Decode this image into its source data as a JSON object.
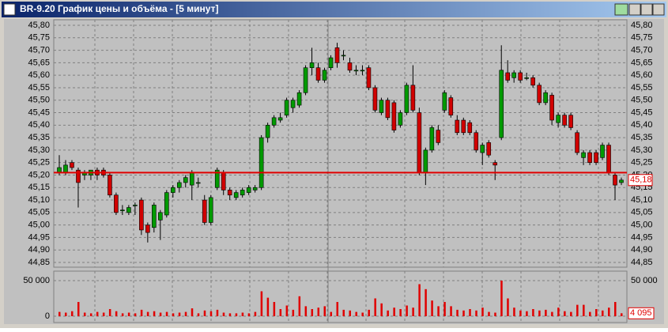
{
  "chart_data": {
    "type": "candlestick",
    "title": "BR-9.20 График цены и объёма - [5 минут]",
    "up_color": "#009a00",
    "down_color": "#d00000",
    "volume_color": "#e00000",
    "level_color": "#e00000",
    "grid": true,
    "open": [
      45.21,
      45.21,
      45.25,
      45.22,
      45.2,
      45.2,
      45.22,
      45.22,
      45.2,
      45.12,
      45.06,
      45.05,
      45.08,
      45.1,
      45.0,
      44.99,
      45.02,
      45.04,
      45.13,
      45.15,
      45.17,
      45.16,
      45.17,
      45.1,
      45.01,
      45.15,
      45.21,
      45.14,
      45.11,
      45.12,
      45.13,
      45.14,
      45.15,
      45.35,
      45.4,
      45.42,
      45.44,
      45.47,
      45.48,
      45.53,
      45.63,
      45.63,
      45.58,
      45.63,
      45.71,
      45.68,
      45.65,
      45.62,
      45.62,
      45.63,
      45.55,
      45.45,
      45.5,
      45.49,
      45.4,
      45.45,
      45.56,
      45.45,
      45.21,
      45.3,
      45.38,
      45.46,
      45.51,
      45.42,
      45.42,
      45.41,
      45.37,
      45.29,
      45.33,
      45.25,
      45.35,
      45.61,
      45.59,
      45.61,
      45.59,
      45.59,
      45.56,
      45.49,
      45.52,
      45.41,
      45.44,
      45.44,
      45.37,
      45.27,
      45.29,
      45.29,
      45.27,
      45.32,
      45.2,
      45.17
    ],
    "high": [
      45.28,
      45.26,
      45.26,
      45.23,
      45.22,
      45.22,
      45.23,
      45.23,
      45.21,
      45.13,
      45.08,
      45.08,
      45.09,
      45.11,
      45.01,
      45.09,
      45.06,
      45.14,
      45.16,
      45.18,
      45.2,
      45.22,
      45.19,
      45.12,
      45.12,
      45.23,
      45.22,
      45.15,
      45.14,
      45.15,
      45.16,
      45.16,
      45.36,
      45.41,
      45.44,
      45.45,
      45.51,
      45.51,
      45.54,
      45.64,
      45.71,
      45.65,
      45.63,
      45.68,
      45.73,
      45.7,
      45.67,
      45.64,
      45.64,
      45.64,
      45.56,
      45.51,
      45.51,
      45.5,
      45.46,
      45.57,
      45.64,
      45.47,
      45.31,
      45.4,
      45.4,
      45.54,
      45.52,
      45.44,
      45.43,
      45.42,
      45.38,
      45.33,
      45.34,
      45.26,
      45.72,
      45.66,
      45.62,
      45.62,
      45.61,
      45.6,
      45.57,
      45.54,
      45.53,
      45.45,
      45.45,
      45.45,
      45.38,
      45.3,
      45.3,
      45.3,
      45.33,
      45.33,
      45.21,
      45.19
    ],
    "low": [
      45.2,
      45.2,
      45.22,
      45.07,
      45.18,
      45.18,
      45.18,
      45.19,
      45.11,
      45.04,
      45.04,
      45.04,
      45.04,
      44.96,
      44.93,
      44.97,
      44.94,
      45.03,
      45.11,
      45.13,
      45.15,
      45.1,
      45.15,
      45.0,
      45.0,
      45.14,
      45.12,
      45.1,
      45.1,
      45.11,
      45.12,
      45.13,
      45.14,
      45.33,
      45.39,
      45.41,
      45.43,
      45.45,
      45.47,
      45.52,
      45.6,
      45.57,
      45.57,
      45.62,
      45.63,
      45.66,
      45.61,
      45.6,
      45.6,
      45.54,
      45.45,
      45.44,
      45.42,
      45.37,
      45.39,
      45.44,
      45.45,
      45.2,
      45.16,
      45.29,
      45.32,
      45.45,
      45.43,
      45.36,
      45.36,
      45.36,
      45.29,
      45.24,
      45.27,
      45.18,
      45.34,
      45.57,
      45.57,
      45.57,
      45.58,
      45.55,
      45.48,
      45.48,
      45.4,
      45.39,
      45.39,
      45.38,
      45.28,
      45.24,
      45.24,
      45.24,
      45.26,
      45.2,
      45.1,
      45.16
    ],
    "close": [
      45.23,
      45.24,
      45.23,
      45.17,
      45.21,
      45.22,
      45.2,
      45.2,
      45.12,
      45.05,
      45.06,
      45.07,
      45.08,
      44.98,
      44.97,
      45.08,
      45.05,
      45.13,
      45.15,
      45.17,
      45.19,
      45.21,
      45.17,
      45.01,
      45.11,
      45.22,
      45.14,
      45.12,
      45.13,
      45.14,
      45.15,
      45.15,
      45.35,
      45.4,
      45.43,
      45.43,
      45.5,
      45.5,
      45.53,
      45.63,
      45.65,
      45.58,
      45.62,
      45.67,
      45.65,
      45.68,
      45.62,
      45.62,
      45.62,
      45.55,
      45.46,
      45.5,
      45.43,
      45.38,
      45.45,
      45.56,
      45.46,
      45.21,
      45.3,
      45.39,
      45.33,
      45.53,
      45.44,
      45.37,
      45.37,
      45.37,
      45.3,
      45.32,
      45.28,
      45.24,
      45.62,
      45.58,
      45.61,
      45.58,
      45.59,
      45.56,
      45.49,
      45.53,
      45.42,
      45.44,
      45.4,
      45.39,
      45.29,
      45.29,
      45.25,
      45.25,
      45.32,
      45.21,
      45.16,
      45.18
    ],
    "volume": [
      6000,
      5000,
      7000,
      20000,
      5000,
      4000,
      6000,
      5000,
      10000,
      7000,
      4000,
      5000,
      4000,
      9000,
      6000,
      7000,
      5000,
      6000,
      4000,
      5000,
      6000,
      11000,
      4000,
      8000,
      7000,
      9000,
      5000,
      4000,
      4000,
      5000,
      4000,
      6000,
      35000,
      26000,
      20000,
      10000,
      15000,
      9000,
      28000,
      14000,
      10000,
      12000,
      14000,
      6000,
      20000,
      9000,
      8000,
      6000,
      5000,
      9000,
      25000,
      18000,
      8000,
      12000,
      10000,
      15000,
      12000,
      45000,
      38000,
      22000,
      14000,
      20000,
      14000,
      9000,
      8000,
      10000,
      8000,
      12000,
      6000,
      5000,
      50000,
      25000,
      12000,
      8000,
      7000,
      10000,
      8000,
      9000,
      6000,
      12000,
      7000,
      6000,
      16000,
      16000,
      6000,
      10000,
      8000,
      12000,
      20000,
      4095
    ],
    "ylim": [
      44.85,
      45.8
    ],
    "yticks": [
      {
        "value": 45.8,
        "label": "45,80"
      },
      {
        "value": 45.75,
        "label": "45,75"
      },
      {
        "value": 45.7,
        "label": "45,70"
      },
      {
        "value": 45.65,
        "label": "45,65"
      },
      {
        "value": 45.6,
        "label": "45,60"
      },
      {
        "value": 45.55,
        "label": "45,55"
      },
      {
        "value": 45.5,
        "label": "45,50"
      },
      {
        "value": 45.45,
        "label": "45,45"
      },
      {
        "value": 45.4,
        "label": "45,40"
      },
      {
        "value": 45.35,
        "label": "45,35"
      },
      {
        "value": 45.3,
        "label": "45,30"
      },
      {
        "value": 45.25,
        "label": "45,25"
      },
      {
        "value": 45.2,
        "label": "45,20"
      },
      {
        "value": 45.15,
        "label": "45,15"
      },
      {
        "value": 45.1,
        "label": "45,10"
      },
      {
        "value": 45.05,
        "label": "45,05"
      },
      {
        "value": 45.0,
        "label": "45,00"
      },
      {
        "value": 44.95,
        "label": "44,95"
      },
      {
        "value": 44.9,
        "label": "44,90"
      },
      {
        "value": 44.85,
        "label": "44,85"
      }
    ],
    "y2lim": [
      0,
      50000
    ],
    "y2ticks": [
      0,
      {
        "value": 50000,
        "label": "50 000"
      }
    ],
    "level_line": 45.21,
    "last_price": {
      "value": 45.18,
      "label": "45,18"
    },
    "last_volume": {
      "value": 4095,
      "label": "4 095"
    }
  }
}
